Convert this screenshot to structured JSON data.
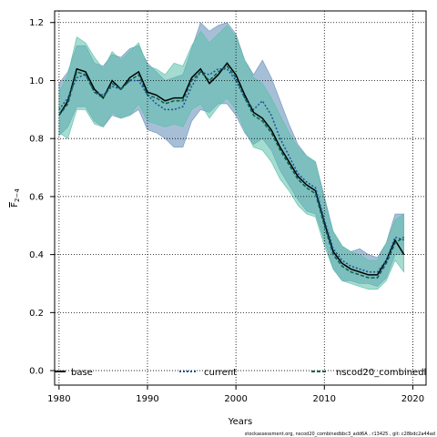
{
  "chart_data": {
    "type": "line",
    "xlabel": "Years",
    "ylabel": "F̄2–4",
    "ylabel_main": "F",
    "ylabel_sub": "2−4",
    "xlim": [
      1979.5,
      2021.5
    ],
    "ylim": [
      -0.05,
      1.24
    ],
    "xticks": [
      1980,
      1990,
      2000,
      2010,
      2020
    ],
    "yticks": [
      0.0,
      0.2,
      0.4,
      0.6,
      0.8,
      1.0,
      1.2
    ],
    "ytick_labels": [
      "0.0",
      "0.2",
      "0.4",
      "0.6",
      "0.8",
      "1.0",
      "1.2"
    ],
    "grid": true,
    "legend_position": "bottom",
    "footer": "stockassessment.org, nscod20_combinedbbc3_add6A , r13425 , git: c28bdc2a44ad",
    "x": [
      1980,
      1981,
      1982,
      1983,
      1984,
      1985,
      1986,
      1987,
      1988,
      1989,
      1990,
      1991,
      1992,
      1993,
      1994,
      1995,
      1996,
      1997,
      1998,
      1999,
      2000,
      2001,
      2002,
      2003,
      2004,
      2005,
      2006,
      2007,
      2008,
      2009,
      2010,
      2011,
      2012,
      2013,
      2014,
      2015,
      2016,
      2017,
      2018,
      2019
    ],
    "series": [
      {
        "name": "base",
        "color": "#000000",
        "dash": "solid",
        "values": [
          0.88,
          0.93,
          1.04,
          1.03,
          0.97,
          0.94,
          1.0,
          0.97,
          1.01,
          1.03,
          0.96,
          0.95,
          0.93,
          0.94,
          0.94,
          1.01,
          1.04,
          0.99,
          1.02,
          1.06,
          1.02,
          0.95,
          0.89,
          0.87,
          0.83,
          0.77,
          0.72,
          0.67,
          0.64,
          0.62,
          0.51,
          0.41,
          0.37,
          0.35,
          0.34,
          0.33,
          0.33,
          0.38,
          0.45,
          0.4
        ]
      },
      {
        "name": "current",
        "color": "#1f4e9c",
        "dash": "dotted",
        "values": [
          0.9,
          0.94,
          1.01,
          1.02,
          0.96,
          0.95,
          0.98,
          0.97,
          1.0,
          1.0,
          0.95,
          0.92,
          0.9,
          0.9,
          0.91,
          0.98,
          1.03,
          1.02,
          1.04,
          1.04,
          1.0,
          0.94,
          0.9,
          0.93,
          0.88,
          0.8,
          0.74,
          0.68,
          0.65,
          0.63,
          0.52,
          0.42,
          0.38,
          0.36,
          0.35,
          0.34,
          0.34,
          0.38,
          0.46,
          0.45
        ]
      },
      {
        "name": "nscod20_combinedl",
        "color": "#0d5e4c",
        "dash": "dashed",
        "values": [
          0.88,
          0.92,
          1.03,
          1.02,
          0.96,
          0.94,
          0.99,
          0.97,
          1.0,
          1.02,
          0.95,
          0.94,
          0.92,
          0.93,
          0.93,
          1.0,
          1.03,
          1.0,
          1.03,
          1.05,
          1.01,
          0.94,
          0.88,
          0.86,
          0.82,
          0.76,
          0.71,
          0.66,
          0.63,
          0.61,
          0.5,
          0.4,
          0.36,
          0.34,
          0.33,
          0.32,
          0.32,
          0.37,
          0.44,
          0.46
        ]
      }
    ],
    "bands": [
      {
        "name": "current",
        "color": "#6b95bd",
        "opacity": 0.6,
        "lower": [
          0.81,
          0.84,
          0.91,
          0.91,
          0.86,
          0.84,
          0.88,
          0.87,
          0.88,
          0.9,
          0.83,
          0.82,
          0.8,
          0.77,
          0.77,
          0.86,
          0.9,
          0.89,
          0.92,
          0.92,
          0.88,
          0.82,
          0.78,
          0.8,
          0.76,
          0.69,
          0.64,
          0.59,
          0.55,
          0.54,
          0.45,
          0.35,
          0.31,
          0.31,
          0.3,
          0.3,
          0.29,
          0.32,
          0.4,
          0.4
        ],
        "upper": [
          0.99,
          1.03,
          1.12,
          1.12,
          1.06,
          1.05,
          1.09,
          1.08,
          1.11,
          1.12,
          1.06,
          1.03,
          1.0,
          1.01,
          1.02,
          1.11,
          1.2,
          1.17,
          1.19,
          1.2,
          1.16,
          1.07,
          1.02,
          1.07,
          1.01,
          0.93,
          0.85,
          0.78,
          0.74,
          0.72,
          0.6,
          0.48,
          0.43,
          0.41,
          0.42,
          0.4,
          0.39,
          0.44,
          0.54,
          0.54
        ]
      },
      {
        "name": "nscod20_combinedl",
        "color": "#5bbfa9",
        "opacity": 0.55,
        "lower": [
          0.82,
          0.8,
          0.9,
          0.9,
          0.85,
          0.84,
          0.89,
          0.87,
          0.88,
          0.92,
          0.86,
          0.85,
          0.84,
          0.85,
          0.84,
          0.9,
          0.92,
          0.87,
          0.91,
          0.94,
          0.9,
          0.83,
          0.77,
          0.76,
          0.72,
          0.66,
          0.62,
          0.57,
          0.54,
          0.53,
          0.43,
          0.35,
          0.31,
          0.3,
          0.29,
          0.28,
          0.28,
          0.31,
          0.38,
          0.34
        ],
        "upper": [
          0.96,
          1.02,
          1.15,
          1.13,
          1.08,
          1.04,
          1.1,
          1.07,
          1.1,
          1.13,
          1.05,
          1.04,
          1.02,
          1.06,
          1.05,
          1.12,
          1.17,
          1.13,
          1.16,
          1.19,
          1.15,
          1.07,
          1.01,
          0.99,
          0.94,
          0.88,
          0.82,
          0.77,
          0.74,
          0.72,
          0.59,
          0.48,
          0.43,
          0.41,
          0.4,
          0.38,
          0.38,
          0.44,
          0.52,
          0.54
        ]
      }
    ]
  }
}
